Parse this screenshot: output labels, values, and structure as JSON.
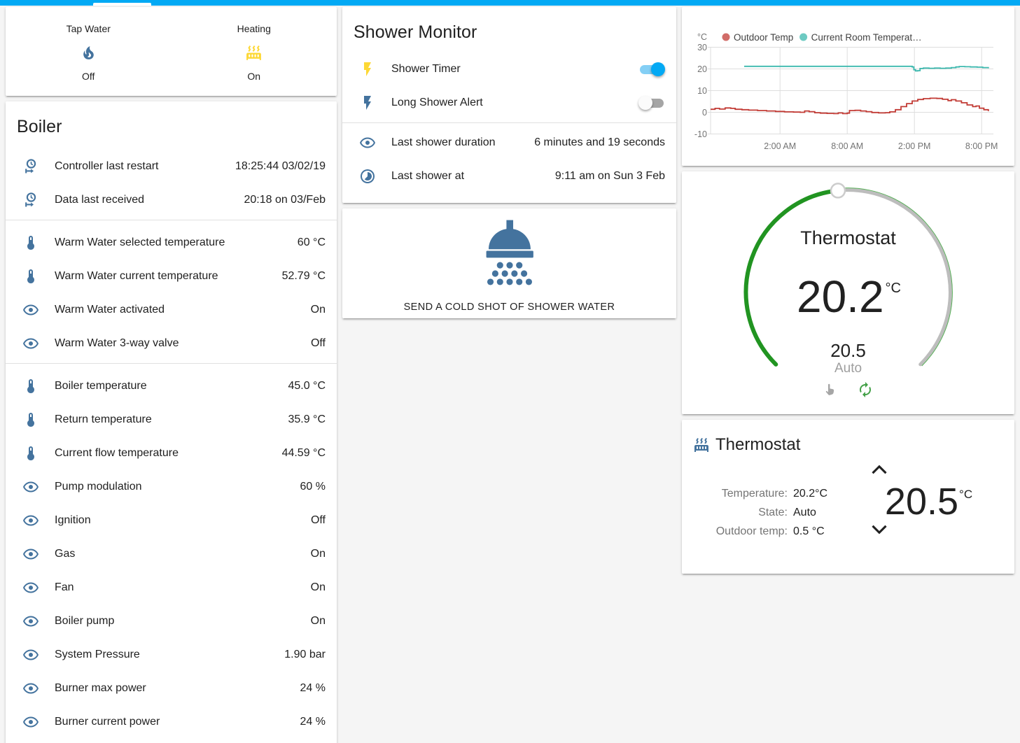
{
  "colors": {
    "accent": "#03a9f4",
    "icon_blue": "#44739e",
    "icon_yellow": "#fdd835",
    "toggle_on": "#03a9f4",
    "dial_green": "#219421",
    "dial_grey": "#bdbdbd",
    "chart_red": "#c23b35",
    "chart_teal": "#3cb8ae"
  },
  "glance": {
    "items": [
      {
        "label": "Tap Water",
        "icon": "fire-icon",
        "icon_color": "#44739e",
        "state": "Off"
      },
      {
        "label": "Heating",
        "icon": "radiator-icon",
        "icon_color": "#fdd835",
        "state": "On"
      }
    ]
  },
  "boiler": {
    "title": "Boiler",
    "sections": [
      {
        "rows": [
          {
            "icon": "clock-start-icon",
            "label": "Controller last restart",
            "value": "18:25:44 03/02/19"
          },
          {
            "icon": "clock-start-icon",
            "label": "Data last received",
            "value": "20:18 on 03/Feb"
          }
        ]
      },
      {
        "rows": [
          {
            "icon": "thermometer-icon",
            "label": "Warm Water selected temperature",
            "value": "60 °C"
          },
          {
            "icon": "thermometer-icon",
            "label": "Warm Water current temperature",
            "value": "52.79 °C"
          },
          {
            "icon": "eye-icon",
            "label": "Warm Water activated",
            "value": "On"
          },
          {
            "icon": "eye-icon",
            "label": "Warm Water 3-way valve",
            "value": "Off"
          }
        ]
      },
      {
        "rows": [
          {
            "icon": "thermometer-icon",
            "label": "Boiler temperature",
            "value": "45.0 °C"
          },
          {
            "icon": "thermometer-icon",
            "label": "Return temperature",
            "value": "35.9 °C"
          },
          {
            "icon": "thermometer-icon",
            "label": "Current flow temperature",
            "value": "44.59 °C"
          },
          {
            "icon": "eye-icon",
            "label": "Pump modulation",
            "value": "60 %"
          },
          {
            "icon": "eye-icon",
            "label": "Ignition",
            "value": "Off"
          },
          {
            "icon": "eye-icon",
            "label": "Gas",
            "value": "On"
          },
          {
            "icon": "eye-icon",
            "label": "Fan",
            "value": "On"
          },
          {
            "icon": "eye-icon",
            "label": "Boiler pump",
            "value": "On"
          },
          {
            "icon": "eye-icon",
            "label": "System Pressure",
            "value": "1.90 bar"
          },
          {
            "icon": "eye-icon",
            "label": "Burner max power",
            "value": "24 %"
          },
          {
            "icon": "eye-icon",
            "label": "Burner current power",
            "value": "24 %"
          }
        ]
      }
    ]
  },
  "shower_monitor": {
    "title": "Shower Monitor",
    "toggles": [
      {
        "icon": "flash-icon",
        "icon_color": "#fdd835",
        "label": "Shower Timer",
        "state": "on"
      },
      {
        "icon": "flash-icon",
        "icon_color": "#44739e",
        "label": "Long Shower Alert",
        "state": "off"
      }
    ],
    "rows": [
      {
        "icon": "eye-icon",
        "label": "Last shower duration",
        "value": "6 minutes and 19 seconds"
      },
      {
        "icon": "timelapse-icon",
        "label": "Last shower at",
        "value": "9:11 am on Sun 3 Feb"
      }
    ]
  },
  "shower_button": {
    "icon": "shower-head-icon",
    "label": "SEND A COLD SHOT OF SHOWER WATER"
  },
  "chart_data": {
    "type": "line",
    "title": "",
    "ylabel": "°C",
    "xlabel": "",
    "ylim": [
      -10,
      30
    ],
    "yticks": [
      30,
      20,
      10,
      0,
      -10
    ],
    "xlim": [
      0,
      25
    ],
    "xticks": [
      {
        "h": 6.2,
        "label": "2:00 AM"
      },
      {
        "h": 12.2,
        "label": "8:00 AM"
      },
      {
        "h": 18.2,
        "label": "2:00 PM"
      },
      {
        "h": 24.2,
        "label": "8:00 PM"
      }
    ],
    "grid": true,
    "legend_position": "top",
    "series": [
      {
        "name": "Outdoor Temp",
        "color": "#c23b35",
        "points": [
          [
            0,
            1.4
          ],
          [
            0.4,
            1.8
          ],
          [
            0.8,
            1.5
          ],
          [
            1.3,
            2.0
          ],
          [
            1.8,
            1.8
          ],
          [
            2.2,
            1.4
          ],
          [
            2.8,
            1.2
          ],
          [
            3.4,
            1.0
          ],
          [
            4.2,
            0.8
          ],
          [
            5,
            0.6
          ],
          [
            5.8,
            0.4
          ],
          [
            6.6,
            0.2
          ],
          [
            7.4,
            0.1
          ],
          [
            8,
            0.0
          ],
          [
            8.4,
            0.6
          ],
          [
            8.8,
            0.3
          ],
          [
            9.3,
            -0.2
          ],
          [
            9.8,
            -0.4
          ],
          [
            10.4,
            -0.5
          ],
          [
            11,
            -0.6
          ],
          [
            11.4,
            -0.3
          ],
          [
            11.8,
            -0.6
          ],
          [
            12.2,
            -0.4
          ],
          [
            12.4,
            0.8
          ],
          [
            12.9,
            0.9
          ],
          [
            13.4,
            0.6
          ],
          [
            13.9,
            0.3
          ],
          [
            14.4,
            -0.1
          ],
          [
            15,
            -0.3
          ],
          [
            15.6,
            -0.2
          ],
          [
            16,
            0.2
          ],
          [
            16.5,
            1.2
          ],
          [
            17,
            2.6
          ],
          [
            17.5,
            4.0
          ],
          [
            18,
            5.2
          ],
          [
            18.5,
            5.9
          ],
          [
            19,
            6.3
          ],
          [
            19.6,
            6.5
          ],
          [
            20.2,
            6.4
          ],
          [
            20.7,
            6.0
          ],
          [
            21.2,
            5.4
          ],
          [
            21.5,
            5.8
          ],
          [
            21.9,
            5.2
          ],
          [
            22.4,
            4.4
          ],
          [
            22.9,
            3.4
          ],
          [
            23.4,
            2.6
          ],
          [
            23.7,
            2.9
          ],
          [
            24,
            1.9
          ],
          [
            24.4,
            1.2
          ],
          [
            24.8,
            0.5
          ]
        ]
      },
      {
        "name": "Current Room Temperat…",
        "color": "#3cb8ae",
        "points": [
          [
            3,
            21.2
          ],
          [
            17.8,
            21.2
          ],
          [
            18,
            20.9
          ],
          [
            18.15,
            19.6
          ],
          [
            18.3,
            19.1
          ],
          [
            18.5,
            19.2
          ],
          [
            18.7,
            20.2
          ],
          [
            19,
            20.4
          ],
          [
            19.5,
            20.3
          ],
          [
            20,
            20.4
          ],
          [
            20.5,
            20.3
          ],
          [
            21,
            20.4
          ],
          [
            21.5,
            20.6
          ],
          [
            21.9,
            20.9
          ],
          [
            22.2,
            21.1
          ],
          [
            22.7,
            21.0
          ],
          [
            23.2,
            20.9
          ],
          [
            23.8,
            20.8
          ],
          [
            24.3,
            20.6
          ],
          [
            24.8,
            20.3
          ]
        ]
      }
    ]
  },
  "dial": {
    "title": "Thermostat",
    "current_temp": "20.2",
    "unit": "°C",
    "target_temp": "20.5",
    "mode": "Auto",
    "icons": [
      "hand-pointer-icon",
      "autorenew-icon"
    ]
  },
  "thermostat_info": {
    "icon": "radiator-icon",
    "title": "Thermostat",
    "attributes": [
      {
        "label": "Temperature:",
        "value": "20.2°C"
      },
      {
        "label": "State:",
        "value": "Auto"
      },
      {
        "label": "Outdoor temp:",
        "value": "0.5 °C"
      }
    ],
    "target": "20.5",
    "target_unit": "°C"
  }
}
